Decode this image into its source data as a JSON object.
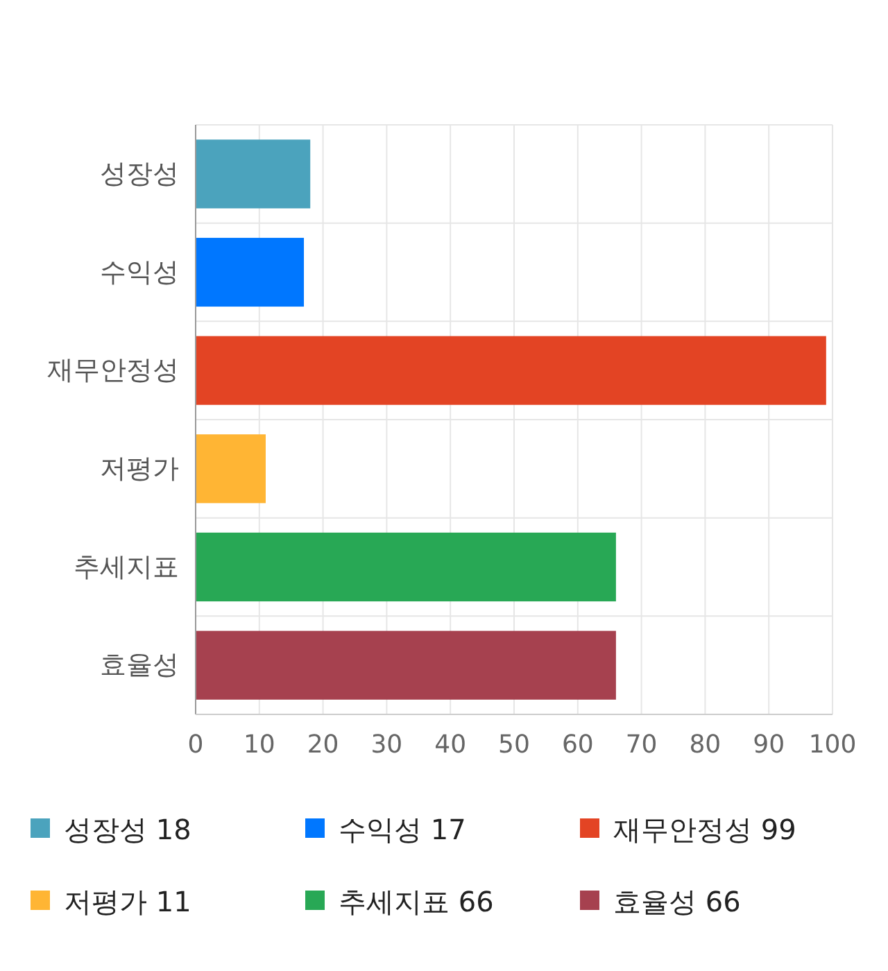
{
  "chart_data": {
    "type": "bar",
    "orientation": "horizontal",
    "stacked": true,
    "categories": [
      "성장성",
      "수익성",
      "재무안정성",
      "저평가",
      "추세지표",
      "효율성"
    ],
    "series": [
      {
        "name": "성장성 18",
        "color": "#4ba3bd",
        "values": [
          18,
          null,
          null,
          null,
          null,
          null
        ]
      },
      {
        "name": "수익성 17",
        "color": "#0077ff",
        "values": [
          null,
          17,
          null,
          null,
          null,
          null
        ]
      },
      {
        "name": "재무안정성 99",
        "color": "#e34424",
        "values": [
          null,
          null,
          99,
          null,
          null,
          null
        ]
      },
      {
        "name": "저평가 11",
        "color": "#ffb534",
        "values": [
          null,
          null,
          null,
          11,
          null,
          null
        ]
      },
      {
        "name": "추세지표 66",
        "color": "#28a855",
        "values": [
          null,
          null,
          null,
          null,
          66,
          null
        ]
      },
      {
        "name": "효율성 66",
        "color": "#a6414f",
        "values": [
          null,
          null,
          null,
          null,
          null,
          66
        ]
      }
    ],
    "xlim": [
      0,
      100
    ],
    "xticks": [
      0,
      10,
      20,
      30,
      40,
      50,
      60,
      70,
      80,
      90,
      100
    ],
    "grid": true,
    "legend": "bottom"
  }
}
